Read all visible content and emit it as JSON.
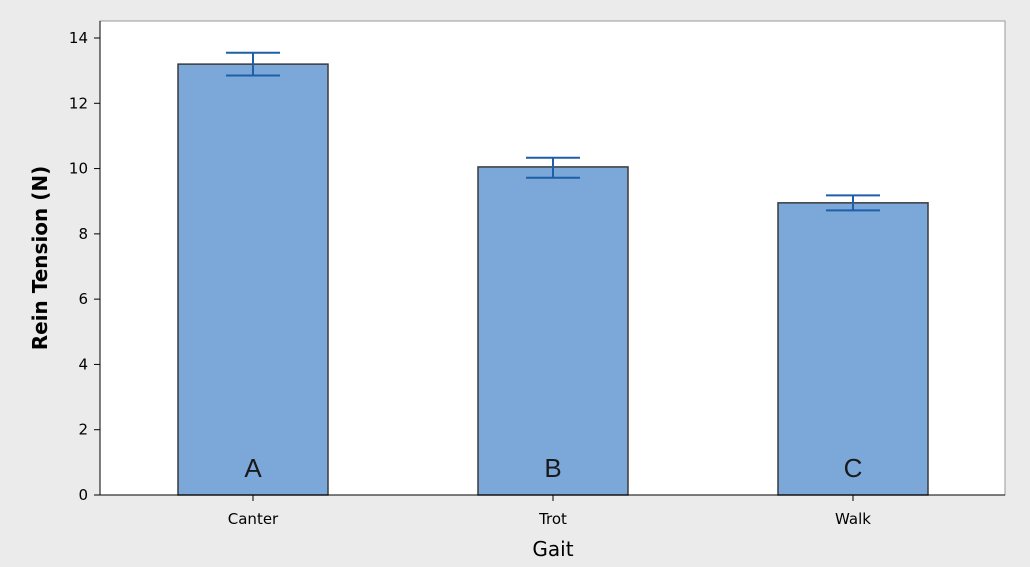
{
  "chart_data": {
    "type": "bar",
    "categories": [
      "Canter",
      "Trot",
      "Walk"
    ],
    "values": [
      13.2,
      10.05,
      8.95
    ],
    "error_bars": [
      {
        "lower": 12.85,
        "upper": 13.55
      },
      {
        "lower": 9.72,
        "upper": 10.33
      },
      {
        "lower": 8.72,
        "upper": 9.18
      }
    ],
    "group_letters": [
      "A",
      "B",
      "C"
    ],
    "xlabel": "Gait",
    "ylabel": "Rein Tension (N)",
    "ylim": [
      0,
      14
    ],
    "yticks": [
      "0",
      "2",
      "4",
      "6",
      "8",
      "10",
      "12",
      "14"
    ],
    "grid": false,
    "colors": {
      "bar_fill": "#7BA7D9",
      "bar_edge": "#3a3a3a",
      "error_bar": "#1f5fa8",
      "panel_background": "#ebebeb",
      "plot_background": "#ffffff"
    }
  }
}
